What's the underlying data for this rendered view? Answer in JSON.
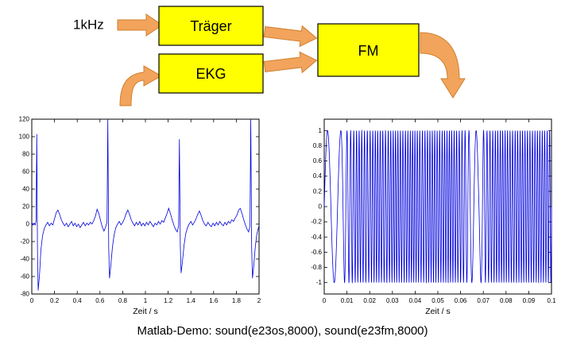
{
  "diagram": {
    "input_label": "1kHz",
    "boxes": {
      "traeger": "Träger",
      "ekg": "EKG",
      "fm": "FM"
    },
    "colors": {
      "box_fill": "#ffff00",
      "box_stroke": "#000000",
      "arrow_fill": "#f2a45c",
      "arrow_stroke": "#cf7f2e"
    }
  },
  "caption": "Matlab-Demo:  sound(e23os,8000), sound(e23fm,8000)",
  "chart_data": [
    {
      "name": "ekg-signal",
      "type": "line",
      "title": "",
      "xlabel": "Zeit / s",
      "ylabel": "",
      "xlim": [
        0,
        2
      ],
      "ylim": [
        -80,
        120
      ],
      "xticks": [
        0,
        0.2,
        0.4,
        0.6,
        0.8,
        1,
        1.2,
        1.4,
        1.6,
        1.8,
        2
      ],
      "yticks": [
        -80,
        -60,
        -40,
        -20,
        0,
        20,
        40,
        60,
        80,
        100,
        120
      ],
      "grid": false,
      "line_color": "#0000dd",
      "points": [
        [
          0,
          2
        ],
        [
          0.01,
          -1
        ],
        [
          0.02,
          1
        ],
        [
          0.03,
          -1
        ],
        [
          0.038,
          4
        ],
        [
          0.044,
          103
        ],
        [
          0.05,
          -30
        ],
        [
          0.056,
          -76
        ],
        [
          0.068,
          -58
        ],
        [
          0.08,
          -30
        ],
        [
          0.095,
          -13
        ],
        [
          0.11,
          -5
        ],
        [
          0.125,
          -1
        ],
        [
          0.14,
          2
        ],
        [
          0.155,
          -2
        ],
        [
          0.17,
          1
        ],
        [
          0.185,
          -1
        ],
        [
          0.2,
          6
        ],
        [
          0.215,
          13
        ],
        [
          0.23,
          16
        ],
        [
          0.245,
          11
        ],
        [
          0.26,
          5
        ],
        [
          0.275,
          1
        ],
        [
          0.29,
          -2
        ],
        [
          0.305,
          1
        ],
        [
          0.32,
          -3
        ],
        [
          0.335,
          0
        ],
        [
          0.35,
          3
        ],
        [
          0.365,
          -2
        ],
        [
          0.38,
          1
        ],
        [
          0.395,
          -3
        ],
        [
          0.41,
          0
        ],
        [
          0.425,
          -4
        ],
        [
          0.44,
          -1
        ],
        [
          0.455,
          2
        ],
        [
          0.47,
          -2
        ],
        [
          0.485,
          1
        ],
        [
          0.5,
          -1
        ],
        [
          0.515,
          2
        ],
        [
          0.53,
          0
        ],
        [
          0.545,
          4
        ],
        [
          0.56,
          9
        ],
        [
          0.575,
          17
        ],
        [
          0.59,
          12
        ],
        [
          0.605,
          4
        ],
        [
          0.62,
          -3
        ],
        [
          0.635,
          -8
        ],
        [
          0.648,
          -4
        ],
        [
          0.662,
          2
        ],
        [
          0.669,
          120
        ],
        [
          0.677,
          -28
        ],
        [
          0.684,
          -62
        ],
        [
          0.695,
          -48
        ],
        [
          0.71,
          -26
        ],
        [
          0.725,
          -12
        ],
        [
          0.74,
          -4
        ],
        [
          0.755,
          0
        ],
        [
          0.77,
          3
        ],
        [
          0.785,
          -1
        ],
        [
          0.8,
          2
        ],
        [
          0.815,
          6
        ],
        [
          0.83,
          12
        ],
        [
          0.845,
          16
        ],
        [
          0.86,
          11
        ],
        [
          0.875,
          5
        ],
        [
          0.89,
          1
        ],
        [
          0.905,
          -2
        ],
        [
          0.92,
          2
        ],
        [
          0.935,
          -1
        ],
        [
          0.95,
          3
        ],
        [
          0.965,
          -2
        ],
        [
          0.98,
          1
        ],
        [
          0.995,
          -2
        ],
        [
          1.01,
          2
        ],
        [
          1.025,
          -1
        ],
        [
          1.04,
          3
        ],
        [
          1.055,
          0
        ],
        [
          1.07,
          -3
        ],
        [
          1.085,
          1
        ],
        [
          1.1,
          -1
        ],
        [
          1.115,
          3
        ],
        [
          1.13,
          0
        ],
        [
          1.145,
          4
        ],
        [
          1.16,
          2
        ],
        [
          1.175,
          7
        ],
        [
          1.19,
          12
        ],
        [
          1.205,
          18
        ],
        [
          1.22,
          12
        ],
        [
          1.235,
          5
        ],
        [
          1.25,
          -1
        ],
        [
          1.265,
          -6
        ],
        [
          1.28,
          -9
        ],
        [
          1.292,
          -2
        ],
        [
          1.299,
          97
        ],
        [
          1.307,
          -25
        ],
        [
          1.314,
          -56
        ],
        [
          1.325,
          -44
        ],
        [
          1.34,
          -24
        ],
        [
          1.355,
          -11
        ],
        [
          1.37,
          -4
        ],
        [
          1.385,
          0
        ],
        [
          1.4,
          3
        ],
        [
          1.415,
          -1
        ],
        [
          1.43,
          2
        ],
        [
          1.445,
          6
        ],
        [
          1.46,
          11
        ],
        [
          1.475,
          15
        ],
        [
          1.49,
          10
        ],
        [
          1.505,
          4
        ],
        [
          1.52,
          0
        ],
        [
          1.535,
          -2
        ],
        [
          1.55,
          2
        ],
        [
          1.565,
          -1
        ],
        [
          1.58,
          -3
        ],
        [
          1.595,
          1
        ],
        [
          1.61,
          -2
        ],
        [
          1.625,
          2
        ],
        [
          1.64,
          -1
        ],
        [
          1.655,
          3
        ],
        [
          1.67,
          0
        ],
        [
          1.685,
          -2
        ],
        [
          1.7,
          2
        ],
        [
          1.715,
          -1
        ],
        [
          1.73,
          3
        ],
        [
          1.745,
          1
        ],
        [
          1.76,
          5
        ],
        [
          1.775,
          3
        ],
        [
          1.79,
          7
        ],
        [
          1.805,
          10
        ],
        [
          1.82,
          16
        ],
        [
          1.835,
          18
        ],
        [
          1.85,
          12
        ],
        [
          1.865,
          5
        ],
        [
          1.88,
          -1
        ],
        [
          1.895,
          -6
        ],
        [
          1.908,
          -9
        ],
        [
          1.92,
          -2
        ],
        [
          1.927,
          120
        ],
        [
          1.935,
          -28
        ],
        [
          1.942,
          -62
        ],
        [
          1.953,
          -48
        ],
        [
          1.967,
          -26
        ],
        [
          1.98,
          -12
        ],
        [
          1.993,
          -5
        ],
        [
          2,
          -2
        ]
      ]
    },
    {
      "name": "fm-signal",
      "type": "line",
      "title": "",
      "xlabel": "Zeit / s",
      "ylabel": "",
      "xlim": [
        0,
        0.1
      ],
      "ylim": [
        -1.15,
        1.15
      ],
      "xticks": [
        0,
        0.01,
        0.02,
        0.03,
        0.04,
        0.05,
        0.06,
        0.07,
        0.08,
        0.09,
        0.1
      ],
      "yticks": [
        -1,
        -0.8,
        -0.6,
        -0.4,
        -0.2,
        0,
        0.2,
        0.4,
        0.6,
        0.8,
        1
      ],
      "grid": false,
      "line_color": "#0000dd",
      "signal": {
        "kind": "fm",
        "amplitude": 1,
        "samples": 4000,
        "freq_profile": [
          [
            0,
            170
          ],
          [
            0.007,
            170
          ],
          [
            0.011,
            650
          ],
          [
            0.015,
            900
          ],
          [
            0.019,
            780
          ],
          [
            0.023,
            950
          ],
          [
            0.027,
            820
          ],
          [
            0.031,
            980
          ],
          [
            0.035,
            880
          ],
          [
            0.039,
            1000
          ],
          [
            0.043,
            860
          ],
          [
            0.047,
            960
          ],
          [
            0.051,
            900
          ],
          [
            0.055,
            980
          ],
          [
            0.059,
            870
          ],
          [
            0.062,
            700
          ],
          [
            0.065,
            300
          ],
          [
            0.068,
            180
          ],
          [
            0.071,
            700
          ],
          [
            0.075,
            900
          ],
          [
            0.079,
            950
          ],
          [
            0.083,
            880
          ],
          [
            0.087,
            940
          ],
          [
            0.091,
            900
          ],
          [
            0.095,
            950
          ],
          [
            0.1,
            900
          ]
        ]
      }
    }
  ]
}
